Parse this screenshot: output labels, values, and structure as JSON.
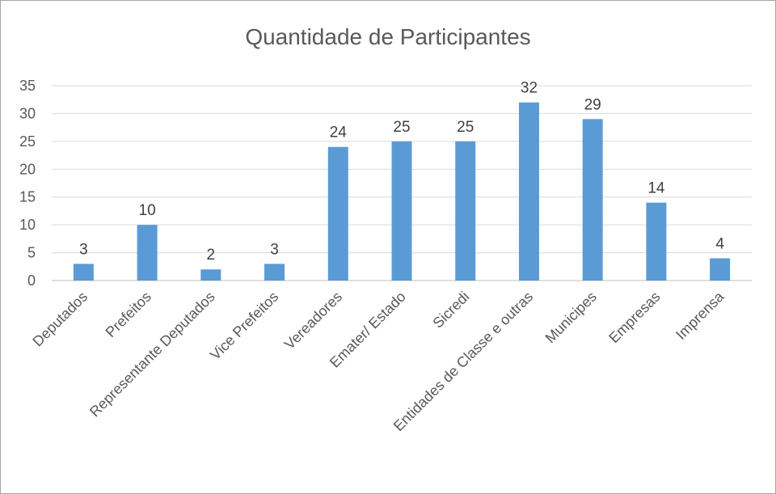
{
  "chart_data": {
    "type": "bar",
    "title": "Quantidade de Participantes",
    "xlabel": "",
    "ylabel": "",
    "ylim": [
      0,
      35
    ],
    "yticks": [
      0,
      5,
      10,
      15,
      20,
      25,
      30,
      35
    ],
    "categories": [
      "Deputados",
      "Prefeitos",
      "Representante Deputados",
      "Vice Prefeitos",
      "Vereadores",
      "Emater/ Estado",
      "Sicredi",
      "Entidades de Classe e outras",
      "Municipes",
      "Empresas",
      "Imprensa"
    ],
    "values": [
      3,
      10,
      2,
      3,
      24,
      25,
      25,
      32,
      29,
      14,
      4
    ],
    "bar_color": "#5b9bd5",
    "grid": true,
    "legend": "none"
  }
}
